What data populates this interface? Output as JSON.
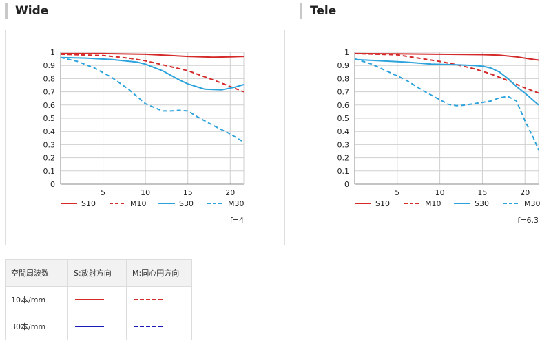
{
  "sections": {
    "wide": {
      "title": "Wide"
    },
    "tele": {
      "title": "Tele"
    }
  },
  "table": {
    "headers": [
      "空間周波数",
      "S:放射方向",
      "M:同心円方向"
    ],
    "rows": [
      {
        "label": "10本/mm",
        "s_color": "#d42a2a",
        "m_color": "#d42a2a",
        "m_style": "dashed"
      },
      {
        "label": "30本/mm",
        "s_color": "#1a1ab8",
        "m_color": "#1a1ab8",
        "m_style": "dashed"
      }
    ]
  },
  "chart_data": [
    {
      "type": "line",
      "xlim": [
        0,
        21.6
      ],
      "ylim": [
        0,
        1
      ],
      "xticks": [
        5,
        10,
        15,
        20
      ],
      "yticks": [
        0,
        0.1,
        0.2,
        0.3,
        0.4,
        0.5,
        0.6,
        0.7,
        0.8,
        0.9,
        1
      ],
      "grid": true,
      "annotation": "f=4",
      "legend_position": "bottom",
      "series": [
        {
          "name": "S10",
          "color": "#d42a2a",
          "dash": "solid",
          "points": [
            [
              0,
              0.99
            ],
            [
              5,
              0.99
            ],
            [
              10,
              0.985
            ],
            [
              13,
              0.975
            ],
            [
              15,
              0.968
            ],
            [
              18,
              0.962
            ],
            [
              20,
              0.965
            ],
            [
              21.6,
              0.968
            ]
          ]
        },
        {
          "name": "M10",
          "color": "#d42a2a",
          "dash": "dashed",
          "points": [
            [
              0,
              0.985
            ],
            [
              5,
              0.975
            ],
            [
              8,
              0.955
            ],
            [
              10,
              0.935
            ],
            [
              12,
              0.905
            ],
            [
              15,
              0.86
            ],
            [
              18,
              0.79
            ],
            [
              20,
              0.74
            ],
            [
              21.6,
              0.7
            ]
          ]
        },
        {
          "name": "S30",
          "color": "#2da3dc",
          "dash": "solid",
          "points": [
            [
              0,
              0.96
            ],
            [
              3,
              0.955
            ],
            [
              6,
              0.945
            ],
            [
              9,
              0.925
            ],
            [
              10,
              0.91
            ],
            [
              12,
              0.86
            ],
            [
              14,
              0.79
            ],
            [
              15,
              0.76
            ],
            [
              17,
              0.72
            ],
            [
              19,
              0.715
            ],
            [
              20.5,
              0.735
            ],
            [
              21.6,
              0.755
            ]
          ]
        },
        {
          "name": "M30",
          "color": "#2da3dc",
          "dash": "dashed",
          "points": [
            [
              0,
              0.96
            ],
            [
              2,
              0.93
            ],
            [
              4,
              0.88
            ],
            [
              6,
              0.81
            ],
            [
              8,
              0.72
            ],
            [
              10,
              0.61
            ],
            [
              12,
              0.555
            ],
            [
              13,
              0.555
            ],
            [
              14,
              0.56
            ],
            [
              15,
              0.555
            ],
            [
              16,
              0.515
            ],
            [
              18,
              0.445
            ],
            [
              20,
              0.38
            ],
            [
              21.6,
              0.32
            ]
          ]
        }
      ]
    },
    {
      "type": "line",
      "xlim": [
        0,
        21.6
      ],
      "ylim": [
        0,
        1
      ],
      "xticks": [
        5,
        10,
        15,
        20
      ],
      "yticks": [
        0,
        0.1,
        0.2,
        0.3,
        0.4,
        0.5,
        0.6,
        0.7,
        0.8,
        0.9,
        1
      ],
      "grid": true,
      "annotation": "f=6.3",
      "legend_position": "bottom",
      "series": [
        {
          "name": "S10",
          "color": "#d42a2a",
          "dash": "solid",
          "points": [
            [
              0,
              0.99
            ],
            [
              5,
              0.988
            ],
            [
              10,
              0.985
            ],
            [
              15,
              0.982
            ],
            [
              17,
              0.978
            ],
            [
              19,
              0.965
            ],
            [
              20.5,
              0.95
            ],
            [
              21.6,
              0.94
            ]
          ]
        },
        {
          "name": "M10",
          "color": "#d42a2a",
          "dash": "dashed",
          "points": [
            [
              0,
              0.99
            ],
            [
              5,
              0.98
            ],
            [
              8,
              0.95
            ],
            [
              10,
              0.93
            ],
            [
              12,
              0.905
            ],
            [
              14,
              0.875
            ],
            [
              16,
              0.835
            ],
            [
              18,
              0.785
            ],
            [
              20,
              0.73
            ],
            [
              21.6,
              0.69
            ]
          ]
        },
        {
          "name": "S30",
          "color": "#2da3dc",
          "dash": "solid",
          "points": [
            [
              0,
              0.945
            ],
            [
              3,
              0.935
            ],
            [
              6,
              0.925
            ],
            [
              9,
              0.91
            ],
            [
              12,
              0.905
            ],
            [
              14,
              0.9
            ],
            [
              15,
              0.895
            ],
            [
              16,
              0.88
            ],
            [
              17,
              0.85
            ],
            [
              18,
              0.8
            ],
            [
              19,
              0.74
            ],
            [
              20,
              0.69
            ],
            [
              21.6,
              0.6
            ]
          ]
        },
        {
          "name": "M30",
          "color": "#2da3dc",
          "dash": "dashed",
          "points": [
            [
              0,
              0.95
            ],
            [
              2,
              0.91
            ],
            [
              4,
              0.85
            ],
            [
              6,
              0.79
            ],
            [
              8,
              0.71
            ],
            [
              10,
              0.64
            ],
            [
              11,
              0.605
            ],
            [
              12,
              0.595
            ],
            [
              13,
              0.6
            ],
            [
              14,
              0.61
            ],
            [
              15,
              0.62
            ],
            [
              16,
              0.63
            ],
            [
              17,
              0.655
            ],
            [
              18,
              0.665
            ],
            [
              19,
              0.63
            ],
            [
              20,
              0.48
            ],
            [
              21,
              0.35
            ],
            [
              21.6,
              0.26
            ]
          ]
        }
      ]
    }
  ]
}
